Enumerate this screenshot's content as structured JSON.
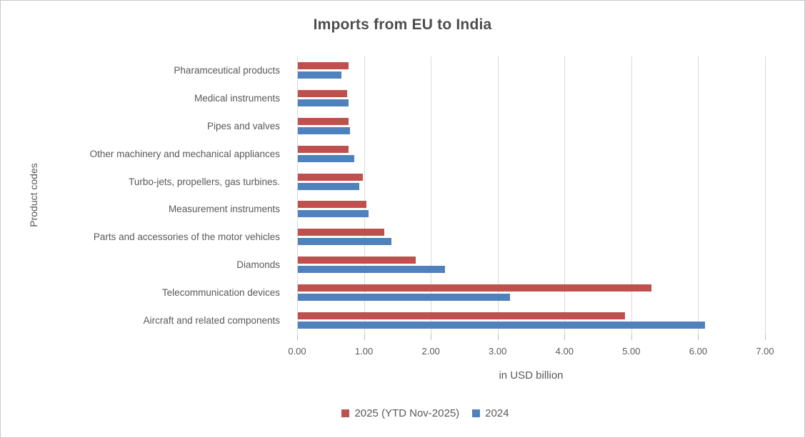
{
  "chart_data": {
    "type": "bar",
    "orientation": "horizontal",
    "title": "Imports from EU to India",
    "xlabel": "in USD billion",
    "ylabel": "Product codes",
    "xlim": [
      0,
      7
    ],
    "xticks": [
      "0.00",
      "1.00",
      "2.00",
      "3.00",
      "4.00",
      "5.00",
      "6.00",
      "7.00"
    ],
    "grid": "vertical-only",
    "legend_position": "bottom",
    "categories_top_to_bottom": [
      "Pharamceutical products",
      "Medical instruments",
      "Pipes and valves",
      "Other machinery and mechanical appliances",
      "Turbo-jets, propellers, gas turbines.",
      "Measurement instruments",
      "Parts and accessories of the motor vehicles",
      "Diamonds",
      "Telecommunication devices",
      "Aircraft and related components"
    ],
    "series": [
      {
        "name": "2025 (YTD Nov-2025)",
        "color": "#C0504D",
        "values": [
          0.76,
          0.74,
          0.76,
          0.76,
          0.97,
          1.03,
          1.3,
          1.77,
          5.3,
          4.9
        ]
      },
      {
        "name": "2024",
        "color": "#4F81BD",
        "values": [
          0.65,
          0.76,
          0.78,
          0.85,
          0.92,
          1.06,
          1.4,
          2.2,
          3.18,
          6.1
        ]
      }
    ]
  }
}
